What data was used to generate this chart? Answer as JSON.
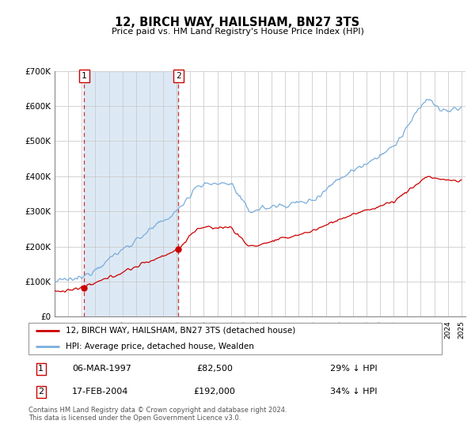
{
  "title": "12, BIRCH WAY, HAILSHAM, BN27 3TS",
  "subtitle": "Price paid vs. HM Land Registry's House Price Index (HPI)",
  "ylim": [
    0,
    700000
  ],
  "xlim_start": 1995.0,
  "xlim_end": 2025.3,
  "yticks": [
    0,
    100000,
    200000,
    300000,
    400000,
    500000,
    600000,
    700000
  ],
  "ytick_labels": [
    "£0",
    "£100K",
    "£200K",
    "£300K",
    "£400K",
    "£500K",
    "£600K",
    "£700K"
  ],
  "transaction1_date": 1997.18,
  "transaction1_price": 82500,
  "transaction2_date": 2004.13,
  "transaction2_price": 192000,
  "legend_line1": "12, BIRCH WAY, HAILSHAM, BN27 3TS (detached house)",
  "legend_line2": "HPI: Average price, detached house, Wealden",
  "footer": "Contains HM Land Registry data © Crown copyright and database right 2024.\nThis data is licensed under the Open Government Licence v3.0.",
  "red_color": "#cc0000",
  "blue_color": "#7aaddb",
  "shading_color": "#dce9f5",
  "grid_color": "#cccccc",
  "background_color": "#ffffff"
}
